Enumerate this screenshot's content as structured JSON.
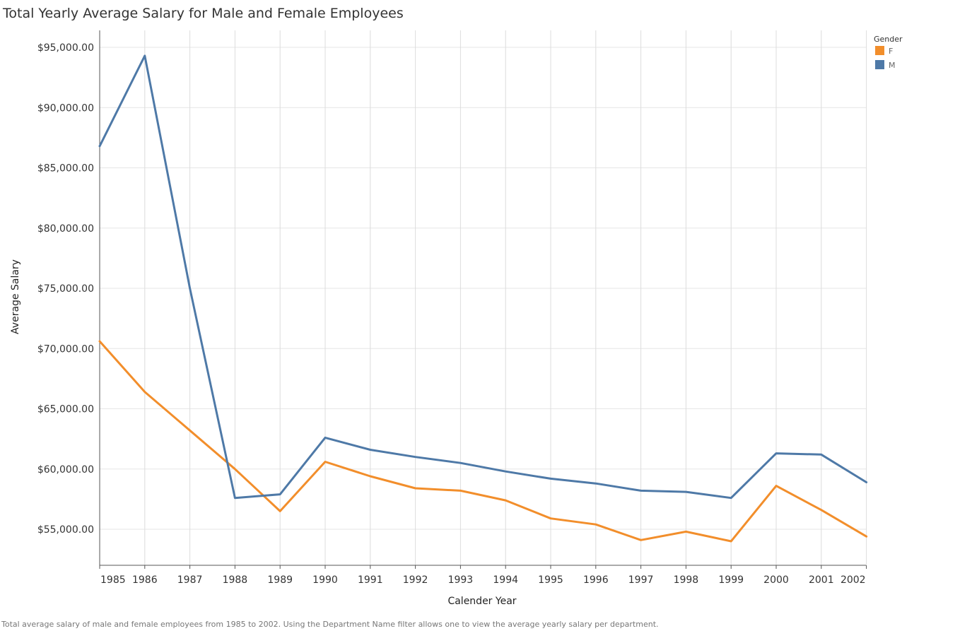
{
  "title": "Total Yearly Average Salary for Male and Female Employees",
  "caption": "Total average salary of male and female employees from 1985 to 2002. Using the Department Name filter allows one to view the average yearly salary per department.",
  "chart_data": {
    "type": "line",
    "title": "Total Yearly Average Salary for Male and Female Employees",
    "xlabel": "Calender Year",
    "ylabel": "Average Salary",
    "x": [
      "1985",
      "1986",
      "1987",
      "1988",
      "1989",
      "1990",
      "1991",
      "1992",
      "1993",
      "1994",
      "1995",
      "1996",
      "1997",
      "1998",
      "1999",
      "2000",
      "2001",
      "2002"
    ],
    "ylim": [
      52000,
      96500
    ],
    "yticks": [
      55000,
      60000,
      65000,
      70000,
      75000,
      80000,
      85000,
      90000,
      95000
    ],
    "ytick_labels": [
      "$55,000.00",
      "$60,000.00",
      "$65,000.00",
      "$70,000.00",
      "$75,000.00",
      "$80,000.00",
      "$85,000.00",
      "$90,000.00",
      "$95,000.00"
    ],
    "grid": true,
    "legend": {
      "title": "Gender",
      "position": "top-right"
    },
    "series": [
      {
        "name": "F",
        "color": "#f28e2b",
        "values": [
          70600,
          66400,
          63200,
          60000,
          56500,
          60600,
          59400,
          58400,
          58200,
          57400,
          55900,
          55400,
          54100,
          54800,
          54000,
          58600,
          56600,
          54400
        ]
      },
      {
        "name": "M",
        "color": "#4e79a7",
        "values": [
          86800,
          94300,
          75000,
          57600,
          57900,
          62600,
          61600,
          61000,
          60500,
          59800,
          59200,
          58800,
          58200,
          58100,
          57600,
          61300,
          61200,
          58900
        ]
      }
    ]
  }
}
